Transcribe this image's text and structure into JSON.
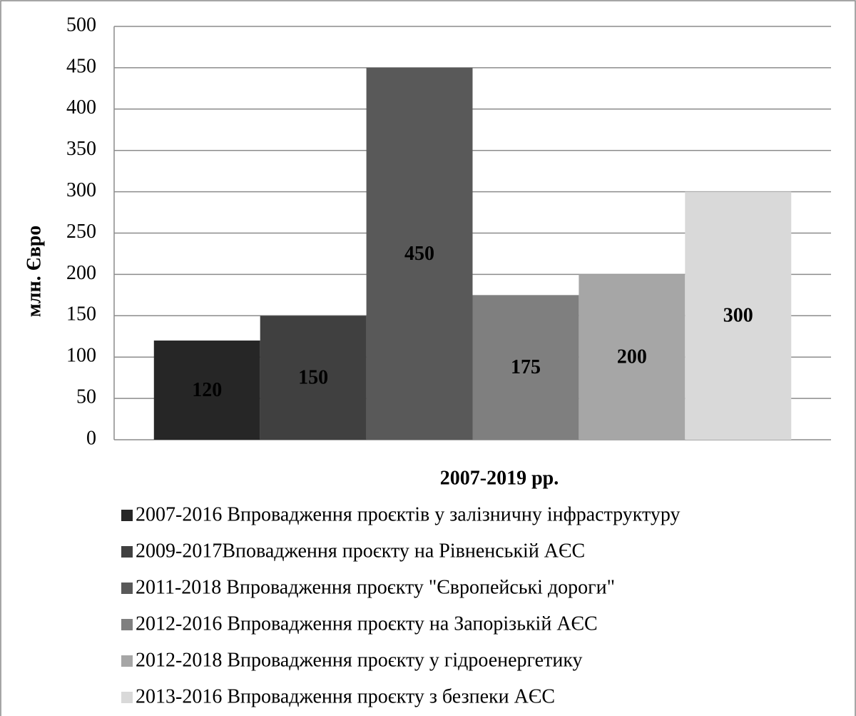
{
  "chart_data": {
    "type": "bar",
    "y_label": "млн. Євро",
    "x_label": "2007-2019 рр.",
    "categories": [
      null
    ],
    "series": [
      {
        "name": "2007-2016 Впровадження проєктів у залізничну інфраструктуру",
        "color": "#262626",
        "values": [
          120
        ]
      },
      {
        "name": "2009-2017Вповадження проєкту на Рівненській АЄС",
        "color": "#404040",
        "values": [
          150
        ]
      },
      {
        "name": "2011-2018 Впровадження проєкту \"Європейські дороги\"",
        "color": "#595959",
        "values": [
          450
        ]
      },
      {
        "name": "2012-2016 Впровадження проєкту на Запорізькій АЄС",
        "color": "#7f7f7f",
        "values": [
          175
        ]
      },
      {
        "name": "2012-2018 Впровадження проєкту у гідроенергетику",
        "color": "#a6a6a6",
        "values": [
          200
        ]
      },
      {
        "name": "2013-2016 Впровадження проєкту з безпеки АЄС",
        "color": "#d9d9d9",
        "values": [
          300
        ]
      }
    ],
    "ylim": [
      0,
      500
    ],
    "yticks": [
      0,
      50,
      100,
      150,
      200,
      250,
      300,
      350,
      400,
      450,
      500
    ],
    "grid": true,
    "legend": "bottom",
    "data_labels": true
  }
}
